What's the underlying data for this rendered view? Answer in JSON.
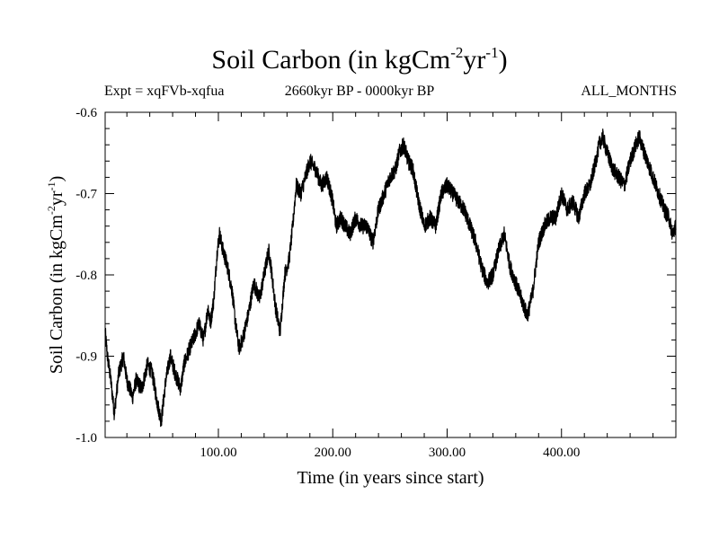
{
  "header": {
    "title_main": "Soil Carbon (in kgCm",
    "title_exp1": "-2",
    "title_mid": "yr",
    "title_exp2": "-1",
    "title_end": ")",
    "expt": "Expt = xqFVb-xqfua",
    "period": "2660kyr BP - 0000kyr BP",
    "months": "ALL_MONTHS"
  },
  "chart_data": {
    "type": "line",
    "title": "Soil Carbon (in kgCm-2yr-1)",
    "xlabel": "Time (in years since start)",
    "ylabel": "Soil Carbon (in kgCm-2yr-1)",
    "ylabel_parts": {
      "main": "Soil Carbon (in kgCm",
      "exp1": "-2",
      "mid": "yr",
      "exp2": "-1",
      "end": ")"
    },
    "xlim": [
      1,
      500
    ],
    "ylim": [
      -1.0,
      -0.6
    ],
    "x_ticks": [
      100,
      200,
      300,
      400
    ],
    "x_tick_labels": [
      "100.00",
      "200.00",
      "300.00",
      "400.00"
    ],
    "y_ticks": [
      -1.0,
      -0.9,
      -0.8,
      -0.7,
      -0.6
    ],
    "y_tick_labels": [
      "-1.0",
      "-0.9",
      "-0.8",
      "-0.7",
      "-0.6"
    ],
    "grid": false,
    "series": [
      {
        "name": "Soil Carbon",
        "color": "#000000",
        "noise_amplitude": 0.01,
        "x": [
          1,
          3,
          6,
          9,
          13,
          17,
          20,
          25,
          28,
          33,
          38,
          42,
          47,
          50,
          54,
          58,
          62,
          67,
          70,
          75,
          78,
          83,
          87,
          91,
          93,
          96,
          99,
          101,
          104,
          108,
          112,
          115,
          118,
          121,
          126,
          131,
          136,
          140,
          144,
          146,
          150,
          154,
          158,
          162,
          165,
          168,
          172,
          176,
          180,
          185,
          190,
          195,
          200,
          203,
          207,
          211,
          215,
          220,
          225,
          230,
          235,
          240,
          245,
          250,
          255,
          258,
          262,
          266,
          270,
          275,
          280,
          285,
          290,
          295,
          300,
          305,
          310,
          315,
          320,
          325,
          330,
          335,
          340,
          345,
          350,
          355,
          360,
          365,
          370,
          372,
          375,
          380,
          385,
          390,
          395,
          400,
          405,
          410,
          415,
          420,
          425,
          430,
          433,
          436,
          440,
          445,
          450,
          455,
          460,
          465,
          468,
          470,
          475,
          480,
          485,
          490,
          494,
          497,
          500
        ],
        "values": [
          -0.87,
          -0.9,
          -0.93,
          -0.97,
          -0.92,
          -0.9,
          -0.93,
          -0.95,
          -0.93,
          -0.94,
          -0.91,
          -0.92,
          -0.96,
          -0.98,
          -0.93,
          -0.9,
          -0.92,
          -0.94,
          -0.91,
          -0.89,
          -0.88,
          -0.86,
          -0.88,
          -0.84,
          -0.86,
          -0.83,
          -0.77,
          -0.75,
          -0.77,
          -0.79,
          -0.82,
          -0.86,
          -0.89,
          -0.88,
          -0.85,
          -0.81,
          -0.83,
          -0.8,
          -0.77,
          -0.79,
          -0.84,
          -0.87,
          -0.8,
          -0.78,
          -0.74,
          -0.69,
          -0.7,
          -0.68,
          -0.66,
          -0.67,
          -0.69,
          -0.68,
          -0.71,
          -0.74,
          -0.73,
          -0.74,
          -0.75,
          -0.73,
          -0.74,
          -0.74,
          -0.76,
          -0.72,
          -0.7,
          -0.68,
          -0.67,
          -0.65,
          -0.64,
          -0.66,
          -0.67,
          -0.71,
          -0.74,
          -0.73,
          -0.74,
          -0.7,
          -0.69,
          -0.7,
          -0.71,
          -0.72,
          -0.74,
          -0.76,
          -0.79,
          -0.81,
          -0.8,
          -0.77,
          -0.75,
          -0.79,
          -0.81,
          -0.83,
          -0.85,
          -0.84,
          -0.82,
          -0.76,
          -0.74,
          -0.73,
          -0.73,
          -0.7,
          -0.72,
          -0.71,
          -0.73,
          -0.7,
          -0.69,
          -0.66,
          -0.64,
          -0.63,
          -0.65,
          -0.67,
          -0.68,
          -0.69,
          -0.66,
          -0.64,
          -0.63,
          -0.64,
          -0.66,
          -0.68,
          -0.7,
          -0.72,
          -0.73,
          -0.75,
          -0.74
        ]
      }
    ]
  }
}
